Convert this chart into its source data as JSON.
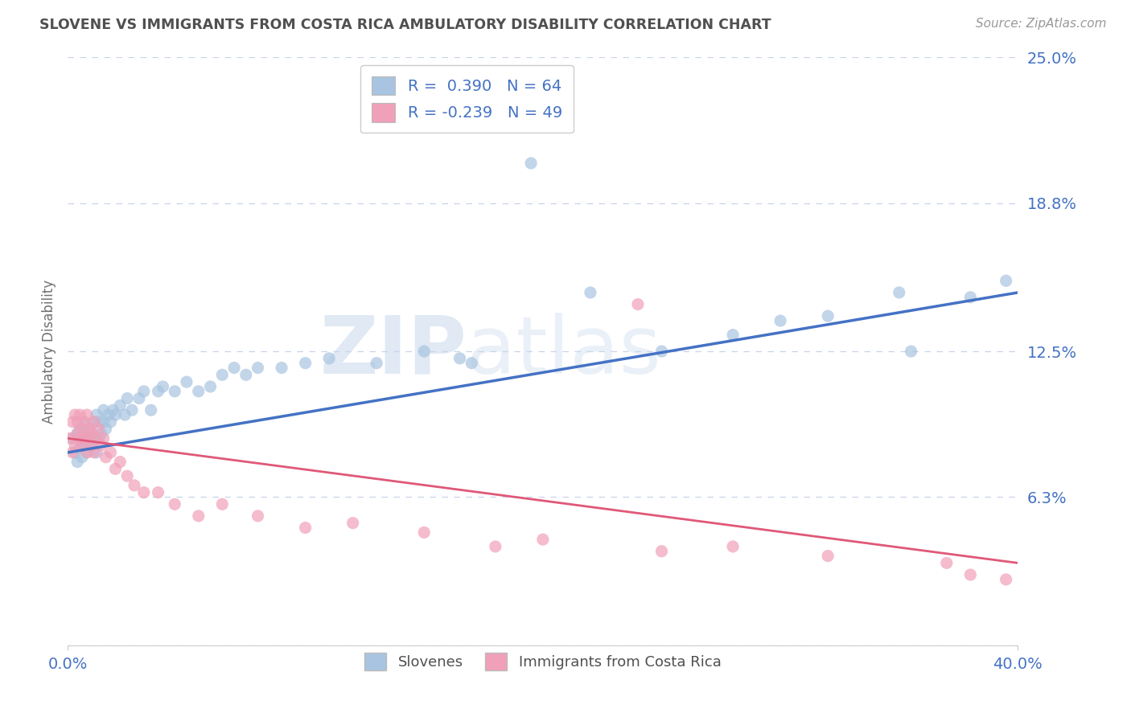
{
  "title": "SLOVENE VS IMMIGRANTS FROM COSTA RICA AMBULATORY DISABILITY CORRELATION CHART",
  "source": "Source: ZipAtlas.com",
  "ylabel": "Ambulatory Disability",
  "x_min": 0.0,
  "x_max": 0.4,
  "y_min": 0.0,
  "y_max": 0.25,
  "y_ticks": [
    0.0,
    0.063,
    0.125,
    0.188,
    0.25
  ],
  "y_tick_labels": [
    "",
    "6.3%",
    "12.5%",
    "18.8%",
    "25.0%"
  ],
  "blue_R": 0.39,
  "blue_N": 64,
  "pink_R": -0.239,
  "pink_N": 49,
  "blue_color": "#a8c4e0",
  "pink_color": "#f0a0b8",
  "blue_line_color": "#4472c4",
  "pink_line_color": "#e05878",
  "legend_label_blue": "Slovenes",
  "legend_label_pink": "Immigrants from Costa Rica",
  "watermark_zip": "ZIP",
  "watermark_atlas": "atlas",
  "background_color": "#ffffff",
  "grid_color": "#c8d4e8",
  "title_color": "#505050",
  "axis_label_color": "#4472c4",
  "blue_line_y_start": 0.082,
  "blue_line_y_end": 0.15,
  "pink_line_y_start": 0.088,
  "pink_line_y_end": 0.035,
  "blue_scatter_x": [
    0.002,
    0.003,
    0.004,
    0.004,
    0.005,
    0.005,
    0.006,
    0.006,
    0.007,
    0.007,
    0.008,
    0.008,
    0.009,
    0.009,
    0.01,
    0.01,
    0.011,
    0.011,
    0.012,
    0.012,
    0.013,
    0.013,
    0.014,
    0.015,
    0.015,
    0.016,
    0.017,
    0.018,
    0.019,
    0.02,
    0.022,
    0.024,
    0.025,
    0.027,
    0.03,
    0.032,
    0.035,
    0.038,
    0.04,
    0.045,
    0.05,
    0.055,
    0.06,
    0.065,
    0.07,
    0.075,
    0.08,
    0.09,
    0.1,
    0.11,
    0.13,
    0.15,
    0.17,
    0.195,
    0.22,
    0.25,
    0.28,
    0.3,
    0.32,
    0.35,
    0.38,
    0.395,
    0.355,
    0.165
  ],
  "blue_scatter_y": [
    0.088,
    0.082,
    0.09,
    0.078,
    0.092,
    0.084,
    0.086,
    0.08,
    0.088,
    0.094,
    0.082,
    0.09,
    0.086,
    0.092,
    0.085,
    0.09,
    0.088,
    0.095,
    0.082,
    0.098,
    0.088,
    0.095,
    0.09,
    0.095,
    0.1,
    0.092,
    0.098,
    0.095,
    0.1,
    0.098,
    0.102,
    0.098,
    0.105,
    0.1,
    0.105,
    0.108,
    0.1,
    0.108,
    0.11,
    0.108,
    0.112,
    0.108,
    0.11,
    0.115,
    0.118,
    0.115,
    0.118,
    0.118,
    0.12,
    0.122,
    0.12,
    0.125,
    0.12,
    0.205,
    0.15,
    0.125,
    0.132,
    0.138,
    0.14,
    0.15,
    0.148,
    0.155,
    0.125,
    0.122
  ],
  "pink_scatter_x": [
    0.001,
    0.002,
    0.002,
    0.003,
    0.003,
    0.004,
    0.004,
    0.005,
    0.005,
    0.006,
    0.006,
    0.007,
    0.007,
    0.008,
    0.008,
    0.009,
    0.009,
    0.01,
    0.01,
    0.011,
    0.011,
    0.012,
    0.013,
    0.014,
    0.015,
    0.016,
    0.018,
    0.02,
    0.022,
    0.025,
    0.028,
    0.032,
    0.038,
    0.045,
    0.055,
    0.065,
    0.08,
    0.1,
    0.12,
    0.15,
    0.2,
    0.25,
    0.28,
    0.32,
    0.37,
    0.38,
    0.395,
    0.24,
    0.18
  ],
  "pink_scatter_y": [
    0.088,
    0.095,
    0.082,
    0.098,
    0.085,
    0.09,
    0.095,
    0.088,
    0.098,
    0.085,
    0.092,
    0.088,
    0.095,
    0.082,
    0.098,
    0.088,
    0.092,
    0.085,
    0.09,
    0.095,
    0.082,
    0.088,
    0.092,
    0.085,
    0.088,
    0.08,
    0.082,
    0.075,
    0.078,
    0.072,
    0.068,
    0.065,
    0.065,
    0.06,
    0.055,
    0.06,
    0.055,
    0.05,
    0.052,
    0.048,
    0.045,
    0.04,
    0.042,
    0.038,
    0.035,
    0.03,
    0.028,
    0.145,
    0.042
  ]
}
